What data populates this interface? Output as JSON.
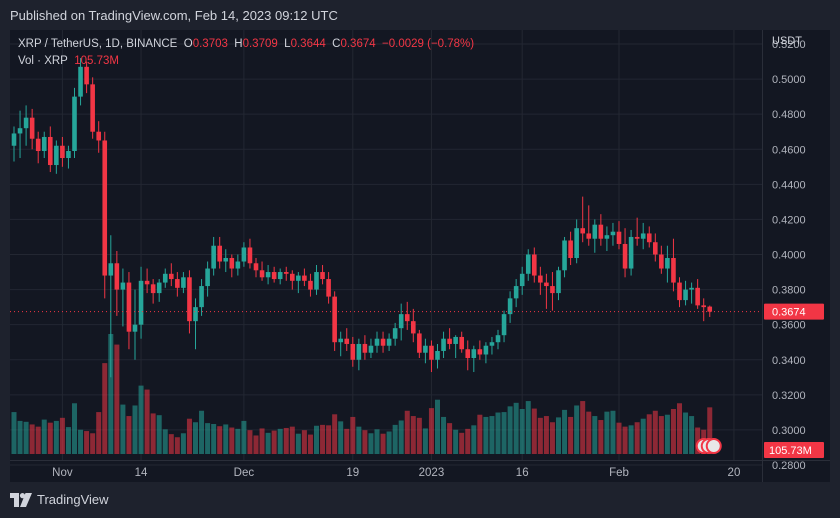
{
  "header": {
    "published": "Published on TradingView.com, Feb 14, 2023 09:12 UTC"
  },
  "legend": {
    "symbol": "XRP / TetherUS, 1D, BINANCE",
    "o_label": "O",
    "o_value": "0.3703",
    "h_label": "H",
    "h_value": "0.3709",
    "l_label": "L",
    "l_value": "0.3644",
    "c_label": "C",
    "c_value": "0.3674",
    "change": "−0.0029 (−0.78%)",
    "vol_label": "Vol · XRP",
    "vol_value": "105.73M"
  },
  "footer": {
    "logo_text": "TradingView"
  },
  "colors": {
    "up": "#26a69a",
    "down": "#f23645",
    "background": "#131722",
    "grid": "#232732",
    "text": "#d1d4dc"
  },
  "chart_data": {
    "type": "candlestick",
    "title": "XRP / TetherUS, 1D, BINANCE",
    "ylabel": "USDT",
    "ylim": [
      0.28,
      0.52
    ],
    "y_ticks": [
      "0.5200",
      "0.5000",
      "0.4800",
      "0.4600",
      "0.4400",
      "0.4200",
      "0.4000",
      "0.3800",
      "0.3600",
      "0.3400",
      "0.3200",
      "0.3000",
      "0.2800"
    ],
    "x_ticks": [
      "Nov",
      "14",
      "Dec",
      "19",
      "2023",
      "16",
      "Feb",
      "20"
    ],
    "x_tick_dates": [
      "2022-11-01",
      "2022-11-14",
      "2022-12-01",
      "2022-12-19",
      "2023-01-01",
      "2023-01-16",
      "2023-02-01",
      "2023-02-20"
    ],
    "first_date": "2022-10-24",
    "last_price": "0.3674",
    "last_volume": "105.73M",
    "candles": [
      [
        0.462,
        0.473,
        0.453,
        0.469
      ],
      [
        0.469,
        0.482,
        0.455,
        0.472
      ],
      [
        0.472,
        0.485,
        0.462,
        0.478
      ],
      [
        0.478,
        0.483,
        0.46,
        0.466
      ],
      [
        0.466,
        0.47,
        0.452,
        0.459
      ],
      [
        0.459,
        0.47,
        0.455,
        0.467
      ],
      [
        0.467,
        0.473,
        0.447,
        0.451
      ],
      [
        0.451,
        0.465,
        0.446,
        0.462
      ],
      [
        0.462,
        0.467,
        0.45,
        0.455
      ],
      [
        0.455,
        0.462,
        0.449,
        0.459
      ],
      [
        0.459,
        0.495,
        0.455,
        0.49
      ],
      [
        0.49,
        0.512,
        0.485,
        0.507
      ],
      [
        0.507,
        0.51,
        0.492,
        0.497
      ],
      [
        0.497,
        0.501,
        0.466,
        0.47
      ],
      [
        0.47,
        0.476,
        0.458,
        0.465
      ],
      [
        0.465,
        0.47,
        0.375,
        0.388
      ],
      [
        0.388,
        0.411,
        0.33,
        0.395
      ],
      [
        0.395,
        0.402,
        0.365,
        0.38
      ],
      [
        0.38,
        0.392,
        0.359,
        0.384
      ],
      [
        0.384,
        0.39,
        0.346,
        0.356
      ],
      [
        0.356,
        0.38,
        0.34,
        0.36
      ],
      [
        0.36,
        0.393,
        0.352,
        0.385
      ],
      [
        0.385,
        0.392,
        0.378,
        0.383
      ],
      [
        0.383,
        0.386,
        0.372,
        0.378
      ],
      [
        0.378,
        0.386,
        0.373,
        0.384
      ],
      [
        0.384,
        0.392,
        0.381,
        0.389
      ],
      [
        0.389,
        0.395,
        0.382,
        0.386
      ],
      [
        0.386,
        0.39,
        0.376,
        0.381
      ],
      [
        0.381,
        0.39,
        0.378,
        0.387
      ],
      [
        0.387,
        0.391,
        0.355,
        0.362
      ],
      [
        0.362,
        0.375,
        0.346,
        0.37
      ],
      [
        0.37,
        0.386,
        0.365,
        0.382
      ],
      [
        0.382,
        0.396,
        0.376,
        0.392
      ],
      [
        0.392,
        0.41,
        0.388,
        0.405
      ],
      [
        0.405,
        0.41,
        0.392,
        0.396
      ],
      [
        0.396,
        0.403,
        0.39,
        0.398
      ],
      [
        0.398,
        0.4,
        0.387,
        0.392
      ],
      [
        0.392,
        0.4,
        0.388,
        0.396
      ],
      [
        0.396,
        0.407,
        0.393,
        0.404
      ],
      [
        0.404,
        0.409,
        0.392,
        0.395
      ],
      [
        0.395,
        0.398,
        0.387,
        0.391
      ],
      [
        0.391,
        0.396,
        0.385,
        0.387
      ],
      [
        0.387,
        0.394,
        0.383,
        0.39
      ],
      [
        0.39,
        0.393,
        0.384,
        0.386
      ],
      [
        0.386,
        0.392,
        0.383,
        0.39
      ],
      [
        0.39,
        0.393,
        0.385,
        0.389
      ],
      [
        0.389,
        0.391,
        0.38,
        0.385
      ],
      [
        0.385,
        0.39,
        0.378,
        0.388
      ],
      [
        0.388,
        0.392,
        0.382,
        0.385
      ],
      [
        0.385,
        0.389,
        0.376,
        0.38
      ],
      [
        0.38,
        0.394,
        0.377,
        0.39
      ],
      [
        0.39,
        0.394,
        0.383,
        0.386
      ],
      [
        0.386,
        0.39,
        0.372,
        0.376
      ],
      [
        0.376,
        0.379,
        0.345,
        0.35
      ],
      [
        0.35,
        0.356,
        0.342,
        0.352
      ],
      [
        0.352,
        0.358,
        0.345,
        0.349
      ],
      [
        0.349,
        0.353,
        0.336,
        0.34
      ],
      [
        0.34,
        0.352,
        0.334,
        0.349
      ],
      [
        0.349,
        0.354,
        0.34,
        0.344
      ],
      [
        0.344,
        0.352,
        0.341,
        0.348
      ],
      [
        0.348,
        0.356,
        0.344,
        0.352
      ],
      [
        0.352,
        0.356,
        0.344,
        0.348
      ],
      [
        0.348,
        0.355,
        0.345,
        0.352
      ],
      [
        0.352,
        0.361,
        0.348,
        0.358
      ],
      [
        0.358,
        0.372,
        0.351,
        0.366
      ],
      [
        0.366,
        0.373,
        0.357,
        0.362
      ],
      [
        0.362,
        0.369,
        0.35,
        0.355
      ],
      [
        0.355,
        0.357,
        0.341,
        0.344
      ],
      [
        0.344,
        0.352,
        0.338,
        0.348
      ],
      [
        0.348,
        0.351,
        0.333,
        0.34
      ],
      [
        0.34,
        0.349,
        0.335,
        0.345
      ],
      [
        0.345,
        0.356,
        0.341,
        0.352
      ],
      [
        0.352,
        0.358,
        0.346,
        0.349
      ],
      [
        0.349,
        0.354,
        0.341,
        0.353
      ],
      [
        0.353,
        0.356,
        0.344,
        0.346
      ],
      [
        0.346,
        0.351,
        0.334,
        0.341
      ],
      [
        0.341,
        0.348,
        0.333,
        0.346
      ],
      [
        0.346,
        0.351,
        0.34,
        0.343
      ],
      [
        0.343,
        0.35,
        0.338,
        0.348
      ],
      [
        0.348,
        0.353,
        0.343,
        0.35
      ],
      [
        0.35,
        0.357,
        0.346,
        0.354
      ],
      [
        0.354,
        0.368,
        0.35,
        0.366
      ],
      [
        0.366,
        0.379,
        0.361,
        0.375
      ],
      [
        0.375,
        0.386,
        0.37,
        0.382
      ],
      [
        0.382,
        0.393,
        0.377,
        0.389
      ],
      [
        0.389,
        0.403,
        0.385,
        0.4
      ],
      [
        0.4,
        0.404,
        0.384,
        0.388
      ],
      [
        0.388,
        0.393,
        0.377,
        0.384
      ],
      [
        0.384,
        0.389,
        0.369,
        0.382
      ],
      [
        0.382,
        0.39,
        0.368,
        0.378
      ],
      [
        0.378,
        0.393,
        0.374,
        0.391
      ],
      [
        0.391,
        0.41,
        0.387,
        0.408
      ],
      [
        0.408,
        0.413,
        0.394,
        0.398
      ],
      [
        0.398,
        0.42,
        0.395,
        0.415
      ],
      [
        0.415,
        0.433,
        0.407,
        0.412
      ],
      [
        0.412,
        0.428,
        0.405,
        0.409
      ],
      [
        0.409,
        0.42,
        0.401,
        0.417
      ],
      [
        0.417,
        0.423,
        0.405,
        0.409
      ],
      [
        0.409,
        0.416,
        0.402,
        0.411
      ],
      [
        0.411,
        0.418,
        0.405,
        0.413
      ],
      [
        0.413,
        0.419,
        0.403,
        0.406
      ],
      [
        0.406,
        0.415,
        0.387,
        0.392
      ],
      [
        0.392,
        0.414,
        0.388,
        0.41
      ],
      [
        0.41,
        0.421,
        0.405,
        0.409
      ],
      [
        0.409,
        0.418,
        0.403,
        0.412
      ],
      [
        0.412,
        0.416,
        0.404,
        0.407
      ],
      [
        0.407,
        0.412,
        0.396,
        0.4
      ],
      [
        0.4,
        0.405,
        0.389,
        0.392
      ],
      [
        0.392,
        0.405,
        0.384,
        0.398
      ],
      [
        0.398,
        0.409,
        0.379,
        0.384
      ],
      [
        0.384,
        0.387,
        0.37,
        0.374
      ],
      [
        0.374,
        0.385,
        0.371,
        0.38
      ],
      [
        0.38,
        0.384,
        0.372,
        0.381
      ],
      [
        0.381,
        0.386,
        0.369,
        0.371
      ],
      [
        0.371,
        0.375,
        0.362,
        0.37
      ],
      [
        0.3703,
        0.3709,
        0.3644,
        0.3674
      ]
    ],
    "volumes_m": [
      95,
      75,
      73,
      67,
      62,
      78,
      71,
      75,
      82,
      61,
      115,
      55,
      52,
      47,
      95,
      206,
      272,
      248,
      112,
      86,
      110,
      155,
      146,
      92,
      88,
      56,
      45,
      38,
      47,
      80,
      72,
      98,
      70,
      68,
      63,
      67,
      60,
      57,
      75,
      54,
      42,
      58,
      48,
      53,
      57,
      59,
      62,
      46,
      54,
      44,
      64,
      66,
      65,
      90,
      74,
      57,
      84,
      62,
      54,
      47,
      56,
      46,
      51,
      66,
      76,
      98,
      86,
      82,
      58,
      104,
      123,
      84,
      70,
      55,
      48,
      57,
      65,
      89,
      84,
      86,
      94,
      95,
      108,
      116,
      102,
      120,
      103,
      82,
      86,
      72,
      83,
      100,
      84,
      110,
      120,
      96,
      86,
      77,
      96,
      98,
      71,
      62,
      65,
      72,
      80,
      90,
      98,
      86,
      89,
      102,
      115,
      94,
      86,
      60,
      55,
      105.73
    ]
  }
}
